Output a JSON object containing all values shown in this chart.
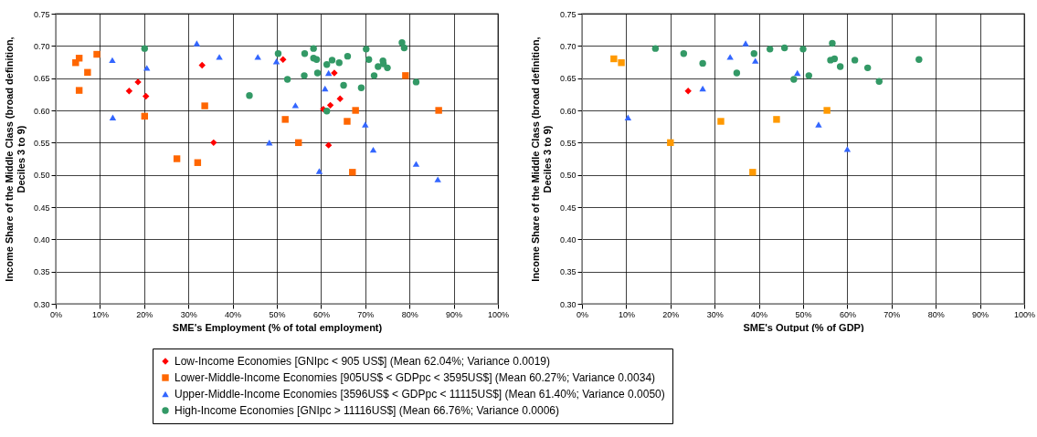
{
  "chart_data": [
    {
      "type": "scatter",
      "xlabel": "SME's Employment (% of total employment)",
      "ylabel": "Income Share of the Middle Class (broad definition,\nDeciles 3 to 9)",
      "xlim": [
        0,
        100
      ],
      "ylim": [
        0.3,
        0.75
      ],
      "xticks": [
        {
          "value": 0,
          "label": "0%"
        },
        {
          "value": 10,
          "label": "10%"
        },
        {
          "value": 20,
          "label": "20%"
        },
        {
          "value": 30,
          "label": "30%"
        },
        {
          "value": 40,
          "label": "40%"
        },
        {
          "value": 50,
          "label": "50%"
        },
        {
          "value": 60,
          "label": "60%"
        },
        {
          "value": 70,
          "label": "70%"
        },
        {
          "value": 80,
          "label": "80%"
        },
        {
          "value": 90,
          "label": "90%"
        },
        {
          "value": 100,
          "label": "100%"
        }
      ],
      "yticks": [
        {
          "value": 0.3,
          "label": "0.30"
        },
        {
          "value": 0.35,
          "label": "0.35"
        },
        {
          "value": 0.4,
          "label": "0.40"
        },
        {
          "value": 0.45,
          "label": "0.45"
        },
        {
          "value": 0.5,
          "label": "0.50"
        },
        {
          "value": 0.55,
          "label": "0.55"
        },
        {
          "value": 0.6,
          "label": "0.60"
        },
        {
          "value": 0.65,
          "label": "0.65"
        },
        {
          "value": 0.7,
          "label": "0.70"
        },
        {
          "value": 0.75,
          "label": "0.75"
        }
      ],
      "grid": true,
      "legend": "bottom",
      "series": [
        {
          "name": "Low-Income Economies [GNIpc < 905 US$] (Mean 62.04%; Variance 0.0019)",
          "color": "#ff0000",
          "marker": "diamond",
          "x": [
            16.6,
            18.6,
            20.4,
            33.1,
            35.7,
            51.4,
            63.0,
            64.3,
            62.1,
            60.5,
            61.7
          ],
          "values": [
            0.63,
            0.644,
            0.622,
            0.67,
            0.55,
            0.679,
            0.658,
            0.618,
            0.608,
            0.602,
            0.546
          ]
        },
        {
          "name": "Lower-Middle-Income Economies [905US$ < GDPpc < 3595US$] (Mean 60.27%; Variance 0.0034)",
          "color": "#ff6600",
          "marker": "square",
          "x": [
            4.5,
            5.3,
            9.3,
            7.2,
            5.3,
            20.1,
            27.4,
            32.1,
            33.7,
            51.9,
            54.9,
            65.9,
            67.8,
            67.1,
            79.1,
            86.6
          ],
          "values": [
            0.674,
            0.681,
            0.687,
            0.659,
            0.631,
            0.591,
            0.525,
            0.519,
            0.607,
            0.586,
            0.55,
            0.583,
            0.6,
            0.504,
            0.654,
            0.6
          ]
        },
        {
          "name": "Upper-Middle-Income Economies [3596US$ < GDPpc < 11115US$] (Mean 61.40%; Variance 0.0050)",
          "color": "#3366ff",
          "marker": "triangle",
          "x": [
            12.8,
            20.6,
            12.9,
            31.9,
            37.0,
            45.7,
            49.9,
            48.3,
            61.7,
            60.9,
            54.2,
            70.0,
            71.8,
            81.5,
            86.4,
            59.6
          ],
          "values": [
            0.678,
            0.666,
            0.589,
            0.704,
            0.683,
            0.683,
            0.676,
            0.55,
            0.658,
            0.634,
            0.608,
            0.578,
            0.539,
            0.517,
            0.493,
            0.506
          ]
        },
        {
          "name": "High-Income Economies [GNIpc > 11116US$] (Mean 66.76%; Variance 0.0006)",
          "color": "#339966",
          "marker": "circle",
          "x": [
            20.1,
            43.8,
            50.3,
            52.4,
            56.3,
            58.3,
            58.3,
            59.0,
            56.2,
            59.2,
            61.3,
            62.5,
            64.1,
            66.0,
            65.1,
            69.1,
            70.2,
            70.8,
            72.0,
            72.9,
            74.0,
            74.1,
            75.0,
            78.3,
            78.8,
            81.5,
            61.3
          ],
          "values": [
            0.696,
            0.623,
            0.688,
            0.648,
            0.688,
            0.696,
            0.681,
            0.679,
            0.654,
            0.658,
            0.671,
            0.678,
            0.674,
            0.684,
            0.639,
            0.635,
            0.695,
            0.679,
            0.654,
            0.668,
            0.677,
            0.672,
            0.666,
            0.705,
            0.697,
            0.644,
            0.599
          ]
        }
      ]
    },
    {
      "type": "scatter",
      "xlabel": "SME's Output (% of GDP)",
      "ylabel": "Income Share of the Middle Class (broad definition,\nDeciles 3 to 9)",
      "xlim": [
        0,
        100
      ],
      "ylim": [
        0.3,
        0.75
      ],
      "xticks": [
        {
          "value": 0,
          "label": "0%"
        },
        {
          "value": 10,
          "label": "10%"
        },
        {
          "value": 20,
          "label": "20%"
        },
        {
          "value": 30,
          "label": "30%"
        },
        {
          "value": 40,
          "label": "40%"
        },
        {
          "value": 50,
          "label": "50%"
        },
        {
          "value": 60,
          "label": "60%"
        },
        {
          "value": 70,
          "label": "70%"
        },
        {
          "value": 80,
          "label": "80%"
        },
        {
          "value": 90,
          "label": "90%"
        },
        {
          "value": 100,
          "label": "100%"
        }
      ],
      "yticks": [
        {
          "value": 0.3,
          "label": "0.30"
        },
        {
          "value": 0.35,
          "label": "0.35"
        },
        {
          "value": 0.4,
          "label": "0.40"
        },
        {
          "value": 0.45,
          "label": "0.45"
        },
        {
          "value": 0.5,
          "label": "0.50"
        },
        {
          "value": 0.55,
          "label": "0.55"
        },
        {
          "value": 0.6,
          "label": "0.60"
        },
        {
          "value": 0.65,
          "label": "0.65"
        },
        {
          "value": 0.7,
          "label": "0.70"
        },
        {
          "value": 0.75,
          "label": "0.75"
        }
      ],
      "grid": true,
      "series": [
        {
          "color": "#ff0000",
          "marker": "diamond",
          "x": [
            24.0
          ],
          "values": [
            0.63
          ]
        },
        {
          "color": "#ff9900",
          "marker": "square",
          "x": [
            7.2,
            8.9,
            20.0,
            31.4,
            44.0,
            38.6,
            55.4
          ],
          "values": [
            0.68,
            0.674,
            0.55,
            0.583,
            0.586,
            0.504,
            0.6
          ]
        },
        {
          "color": "#3366ff",
          "marker": "triangle",
          "x": [
            37.0,
            33.5,
            39.2,
            48.7,
            27.3,
            10.4,
            53.5,
            60.0
          ],
          "values": [
            0.704,
            0.683,
            0.677,
            0.658,
            0.634,
            0.589,
            0.578,
            0.54
          ]
        },
        {
          "color": "#339966",
          "marker": "circle",
          "x": [
            16.6,
            23.0,
            27.3,
            35.0,
            38.9,
            42.5,
            45.8,
            50.0,
            47.9,
            51.3,
            56.6,
            56.2,
            57.1,
            58.4,
            61.7,
            64.6,
            67.2,
            76.2
          ],
          "values": [
            0.696,
            0.688,
            0.673,
            0.658,
            0.688,
            0.695,
            0.697,
            0.695,
            0.648,
            0.654,
            0.704,
            0.678,
            0.68,
            0.668,
            0.678,
            0.666,
            0.645,
            0.679
          ]
        }
      ]
    }
  ]
}
